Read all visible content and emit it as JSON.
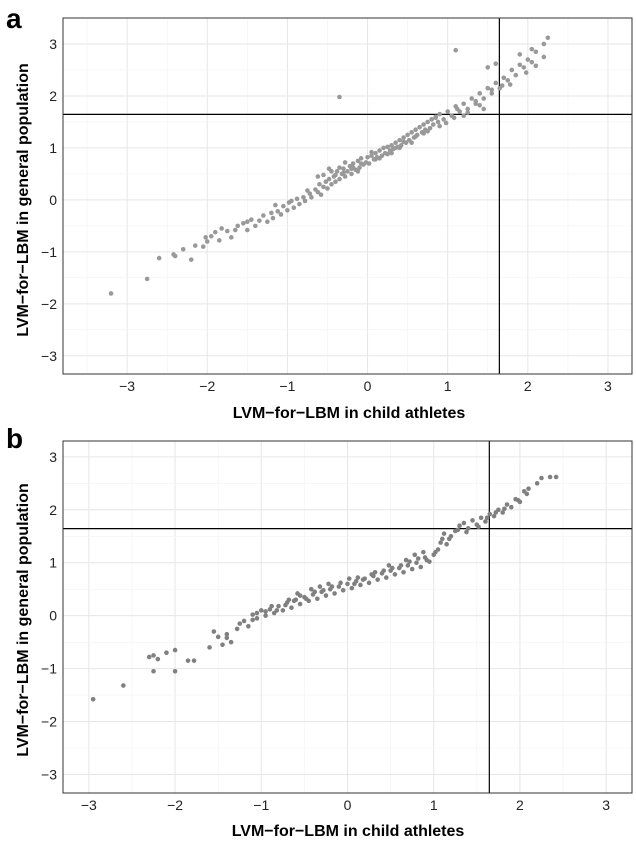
{
  "chart_data": [
    {
      "panel": "a",
      "type": "scatter",
      "xlabel": "LVM−for−LBM in child athletes",
      "ylabel": "LVM−for−LBM in general population",
      "xlim": [
        -3.8,
        3.3
      ],
      "ylim": [
        -3.35,
        3.5
      ],
      "xticks": [
        -3,
        -2,
        -1,
        0,
        1,
        2,
        3
      ],
      "yticks": [
        -3,
        -2,
        -1,
        0,
        1,
        2,
        3
      ],
      "grid": true,
      "reference_lines": {
        "x": 1.645,
        "y": 1.645
      },
      "point_color": "#999999",
      "points": [
        [
          -3.2,
          -1.8
        ],
        [
          -2.75,
          -1.52
        ],
        [
          -2.6,
          -1.12
        ],
        [
          -2.42,
          -1.05
        ],
        [
          -2.3,
          -0.95
        ],
        [
          -2.2,
          -1.15
        ],
        [
          -2.15,
          -0.88
        ],
        [
          -2.05,
          -0.9
        ],
        [
          -2.02,
          -0.72
        ],
        [
          -1.95,
          -0.7
        ],
        [
          -1.9,
          -0.62
        ],
        [
          -1.85,
          -0.78
        ],
        [
          -1.82,
          -0.55
        ],
        [
          -1.75,
          -0.6
        ],
        [
          -1.7,
          -0.72
        ],
        [
          -1.62,
          -0.5
        ],
        [
          -1.55,
          -0.45
        ],
        [
          -1.5,
          -0.58
        ],
        [
          -1.45,
          -0.38
        ],
        [
          -1.4,
          -0.5
        ],
        [
          -1.35,
          -0.4
        ],
        [
          -1.3,
          -0.3
        ],
        [
          -1.25,
          -0.42
        ],
        [
          -1.2,
          -0.25
        ],
        [
          -1.18,
          -0.35
        ],
        [
          -1.12,
          -0.22
        ],
        [
          -1.08,
          -0.28
        ],
        [
          -1.05,
          -0.12
        ],
        [
          -1.0,
          -0.2
        ],
        [
          -0.98,
          -0.05
        ],
        [
          -0.92,
          -0.15
        ],
        [
          -0.88,
          0.02
        ],
        [
          -0.85,
          -0.08
        ],
        [
          -0.8,
          0.05
        ],
        [
          -0.78,
          -0.02
        ],
        [
          -0.72,
          0.12
        ],
        [
          -0.7,
          0.05
        ],
        [
          -0.65,
          0.2
        ],
        [
          -0.62,
          0.15
        ],
        [
          -0.6,
          0.3
        ],
        [
          -0.58,
          0.1
        ],
        [
          -0.55,
          0.25
        ],
        [
          -0.52,
          0.35
        ],
        [
          -0.5,
          0.22
        ],
        [
          -0.48,
          0.4
        ],
        [
          -0.45,
          0.3
        ],
        [
          -0.42,
          0.45
        ],
        [
          -0.4,
          0.35
        ],
        [
          -0.38,
          0.55
        ],
        [
          -0.35,
          0.4
        ],
        [
          -0.32,
          0.5
        ],
        [
          -0.3,
          0.6
        ],
        [
          -0.28,
          0.45
        ],
        [
          -0.25,
          0.55
        ],
        [
          -0.22,
          0.65
        ],
        [
          -0.2,
          0.5
        ],
        [
          -0.18,
          0.7
        ],
        [
          -0.15,
          0.58
        ],
        [
          -0.12,
          0.75
        ],
        [
          -0.1,
          0.62
        ],
        [
          -0.08,
          0.8
        ],
        [
          -0.05,
          0.68
        ],
        [
          -0.02,
          0.72
        ],
        [
          0.0,
          0.82
        ],
        [
          0.02,
          0.7
        ],
        [
          0.05,
          0.85
        ],
        [
          0.08,
          0.78
        ],
        [
          0.1,
          0.9
        ],
        [
          0.12,
          0.82
        ],
        [
          0.15,
          0.95
        ],
        [
          0.18,
          0.85
        ],
        [
          0.2,
          1.0
        ],
        [
          0.22,
          0.9
        ],
        [
          0.25,
          1.02
        ],
        [
          0.28,
          0.95
        ],
        [
          0.3,
          1.05
        ],
        [
          0.32,
          0.98
        ],
        [
          0.35,
          1.1
        ],
        [
          0.38,
          1.02
        ],
        [
          0.4,
          1.15
        ],
        [
          0.42,
          1.05
        ],
        [
          0.45,
          1.2
        ],
        [
          0.48,
          1.1
        ],
        [
          0.5,
          1.25
        ],
        [
          0.52,
          1.15
        ],
        [
          0.55,
          1.3
        ],
        [
          0.58,
          1.2
        ],
        [
          0.6,
          1.35
        ],
        [
          0.62,
          1.25
        ],
        [
          0.65,
          1.4
        ],
        [
          0.68,
          1.3
        ],
        [
          0.7,
          1.45
        ],
        [
          0.72,
          1.35
        ],
        [
          0.75,
          1.5
        ],
        [
          0.78,
          1.38
        ],
        [
          0.8,
          1.55
        ],
        [
          0.82,
          1.45
        ],
        [
          0.85,
          1.6
        ],
        [
          0.88,
          1.5
        ],
        [
          0.9,
          1.65
        ],
        [
          0.95,
          1.55
        ],
        [
          1.0,
          1.7
        ],
        [
          1.05,
          1.62
        ],
        [
          1.1,
          1.8
        ],
        [
          1.15,
          1.7
        ],
        [
          1.2,
          1.85
        ],
        [
          1.25,
          1.75
        ],
        [
          1.3,
          1.95
        ],
        [
          1.35,
          1.85
        ],
        [
          1.4,
          2.05
        ],
        [
          1.45,
          1.95
        ],
        [
          1.5,
          2.15
        ],
        [
          1.55,
          2.05
        ],
        [
          1.6,
          2.25
        ],
        [
          1.65,
          2.15
        ],
        [
          1.7,
          2.35
        ],
        [
          1.75,
          2.3
        ],
        [
          1.8,
          2.5
        ],
        [
          1.85,
          2.4
        ],
        [
          1.9,
          2.6
        ],
        [
          1.95,
          2.55
        ],
        [
          2.0,
          2.7
        ],
        [
          2.05,
          2.65
        ],
        [
          2.1,
          2.85
        ],
        [
          2.2,
          3.0
        ],
        [
          2.25,
          3.12
        ],
        [
          -0.35,
          1.98
        ],
        [
          1.1,
          2.88
        ],
        [
          1.5,
          2.55
        ],
        [
          1.6,
          2.62
        ],
        [
          1.9,
          2.8
        ],
        [
          2.05,
          2.9
        ],
        [
          -0.55,
          0.48
        ],
        [
          -0.45,
          0.55
        ],
        [
          -0.35,
          0.62
        ],
        [
          0.15,
          0.8
        ],
        [
          0.3,
          0.9
        ],
        [
          -0.62,
          0.45
        ],
        [
          -0.48,
          0.6
        ],
        [
          -0.28,
          0.72
        ],
        [
          0.05,
          0.92
        ],
        [
          0.45,
          1.12
        ],
        [
          0.6,
          1.22
        ],
        [
          0.75,
          1.32
        ],
        [
          0.9,
          1.42
        ],
        [
          1.2,
          1.62
        ],
        [
          1.4,
          1.82
        ],
        [
          -1.5,
          -0.42
        ],
        [
          -1.65,
          -0.58
        ],
        [
          -2.0,
          -0.8
        ],
        [
          -2.4,
          -1.08
        ],
        [
          -0.95,
          -0.02
        ],
        [
          -1.15,
          -0.1
        ],
        [
          -0.75,
          0.18
        ],
        [
          0.35,
          1.0
        ],
        [
          0.55,
          1.1
        ],
        [
          0.7,
          1.28
        ],
        [
          0.98,
          1.48
        ],
        [
          1.08,
          1.58
        ],
        [
          1.25,
          1.68
        ],
        [
          1.45,
          1.75
        ],
        [
          1.68,
          2.2
        ],
        [
          1.78,
          2.22
        ],
        [
          1.98,
          2.45
        ],
        [
          2.1,
          2.58
        ],
        [
          2.2,
          2.75
        ],
        [
          1.55,
          2.12
        ],
        [
          1.35,
          1.9
        ],
        [
          1.12,
          1.75
        ],
        [
          0.85,
          1.58
        ],
        [
          -0.18,
          0.62
        ],
        [
          -0.08,
          0.7
        ],
        [
          0.1,
          0.78
        ],
        [
          0.25,
          0.88
        ],
        [
          0.4,
          1.0
        ],
        [
          -0.4,
          0.48
        ],
        [
          -0.3,
          0.52
        ],
        [
          -0.2,
          0.6
        ],
        [
          -0.12,
          0.55
        ]
      ]
    },
    {
      "panel": "b",
      "type": "scatter",
      "xlabel": "LVM−for−LBM in child athletes",
      "ylabel": "LVM−for−LBM in general population",
      "xlim": [
        -3.3,
        3.3
      ],
      "ylim": [
        -3.35,
        3.3
      ],
      "xticks": [
        -3,
        -2,
        -1,
        0,
        1,
        2,
        3
      ],
      "yticks": [
        -3,
        -2,
        -1,
        0,
        1,
        2,
        3
      ],
      "grid": true,
      "reference_lines": {
        "x": 1.645,
        "y": 1.645
      },
      "point_color": "#808080",
      "points": [
        [
          -2.95,
          -1.58
        ],
        [
          -2.6,
          -1.32
        ],
        [
          -2.25,
          -1.05
        ],
        [
          -2.2,
          -0.82
        ],
        [
          -2.25,
          -0.75
        ],
        [
          -2.1,
          -0.7
        ],
        [
          -2.0,
          -0.65
        ],
        [
          -2.0,
          -1.05
        ],
        [
          -1.85,
          -0.85
        ],
        [
          -1.78,
          -0.85
        ],
        [
          -1.6,
          -0.6
        ],
        [
          -1.5,
          -0.4
        ],
        [
          -1.45,
          -0.55
        ],
        [
          -1.4,
          -0.35
        ],
        [
          -1.35,
          -0.5
        ],
        [
          -1.28,
          -0.25
        ],
        [
          -1.2,
          -0.1
        ],
        [
          -1.15,
          -0.2
        ],
        [
          -1.1,
          0.02
        ],
        [
          -1.05,
          -0.05
        ],
        [
          -1.0,
          0.1
        ],
        [
          -0.95,
          0.0
        ],
        [
          -0.9,
          0.12
        ],
        [
          -0.85,
          0.05
        ],
        [
          -0.8,
          0.18
        ],
        [
          -0.75,
          0.1
        ],
        [
          -0.7,
          0.25
        ],
        [
          -0.65,
          0.15
        ],
        [
          -0.6,
          0.3
        ],
        [
          -0.55,
          0.22
        ],
        [
          -0.5,
          0.35
        ],
        [
          -0.45,
          0.28
        ],
        [
          -0.4,
          0.4
        ],
        [
          -0.35,
          0.32
        ],
        [
          -0.3,
          0.45
        ],
        [
          -0.25,
          0.38
        ],
        [
          -0.2,
          0.5
        ],
        [
          -0.15,
          0.42
        ],
        [
          -0.1,
          0.55
        ],
        [
          -0.05,
          0.48
        ],
        [
          0.0,
          0.6
        ],
        [
          0.05,
          0.52
        ],
        [
          0.1,
          0.65
        ],
        [
          0.15,
          0.58
        ],
        [
          0.2,
          0.7
        ],
        [
          0.25,
          0.62
        ],
        [
          0.3,
          0.75
        ],
        [
          0.35,
          0.68
        ],
        [
          0.4,
          0.8
        ],
        [
          0.45,
          0.72
        ],
        [
          0.5,
          0.85
        ],
        [
          0.55,
          0.78
        ],
        [
          0.6,
          0.9
        ],
        [
          0.65,
          0.82
        ],
        [
          0.7,
          0.95
        ],
        [
          0.75,
          0.88
        ],
        [
          0.8,
          1.0
        ],
        [
          0.85,
          0.92
        ],
        [
          0.9,
          1.1
        ],
        [
          0.95,
          1.02
        ],
        [
          1.0,
          1.15
        ],
        [
          1.05,
          1.25
        ],
        [
          1.1,
          1.45
        ],
        [
          1.12,
          1.55
        ],
        [
          1.2,
          1.5
        ],
        [
          1.25,
          1.6
        ],
        [
          1.3,
          1.7
        ],
        [
          1.35,
          1.75
        ],
        [
          1.4,
          1.65
        ],
        [
          1.45,
          1.8
        ],
        [
          1.5,
          1.72
        ],
        [
          1.55,
          1.85
        ],
        [
          1.6,
          1.78
        ],
        [
          1.65,
          1.92
        ],
        [
          1.7,
          1.88
        ],
        [
          1.75,
          2.0
        ],
        [
          1.8,
          1.95
        ],
        [
          1.85,
          2.1
        ],
        [
          1.9,
          2.05
        ],
        [
          1.95,
          2.2
        ],
        [
          2.0,
          2.15
        ],
        [
          2.05,
          2.35
        ],
        [
          2.1,
          2.4
        ],
        [
          2.2,
          2.5
        ],
        [
          2.25,
          2.6
        ],
        [
          2.35,
          2.62
        ],
        [
          2.42,
          2.62
        ],
        [
          -0.72,
          0.2
        ],
        [
          -0.62,
          0.28
        ],
        [
          -0.48,
          0.32
        ],
        [
          -0.38,
          0.45
        ],
        [
          -0.28,
          0.48
        ],
        [
          -0.18,
          0.55
        ],
        [
          -0.08,
          0.62
        ],
        [
          0.08,
          0.6
        ],
        [
          0.18,
          0.68
        ],
        [
          0.28,
          0.78
        ],
        [
          0.42,
          0.85
        ],
        [
          0.52,
          0.9
        ],
        [
          0.62,
          0.95
        ],
        [
          0.72,
          1.02
        ],
        [
          0.82,
          1.08
        ],
        [
          0.92,
          1.05
        ],
        [
          1.02,
          1.2
        ],
        [
          1.15,
          1.35
        ],
        [
          1.28,
          1.62
        ],
        [
          -1.25,
          -0.15
        ],
        [
          -1.1,
          -0.08
        ],
        [
          -0.95,
          0.08
        ],
        [
          -0.82,
          0.1
        ],
        [
          -1.55,
          -0.3
        ],
        [
          -1.4,
          -0.42
        ],
        [
          -2.3,
          -0.78
        ],
        [
          -0.55,
          0.38
        ],
        [
          -0.42,
          0.5
        ],
        [
          -0.32,
          0.55
        ],
        [
          -0.22,
          0.6
        ],
        [
          0.02,
          0.7
        ],
        [
          0.12,
          0.72
        ],
        [
          0.32,
          0.82
        ],
        [
          0.48,
          0.95
        ],
        [
          0.68,
          1.05
        ],
        [
          0.78,
          1.15
        ],
        [
          0.88,
          1.2
        ],
        [
          1.08,
          1.38
        ],
        [
          1.18,
          1.45
        ],
        [
          1.38,
          1.58
        ],
        [
          1.52,
          1.68
        ],
        [
          1.62,
          1.85
        ],
        [
          1.72,
          1.95
        ],
        [
          1.82,
          2.02
        ],
        [
          1.98,
          2.18
        ],
        [
          2.08,
          2.3
        ],
        [
          -1.05,
          0.05
        ],
        [
          -0.88,
          0.18
        ],
        [
          -0.68,
          0.3
        ],
        [
          -0.58,
          0.42
        ]
      ]
    }
  ]
}
